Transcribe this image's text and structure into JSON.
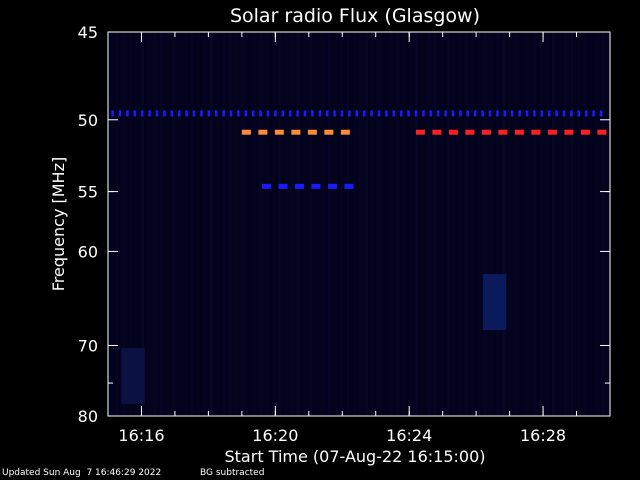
{
  "chart_data": {
    "type": "heatmap",
    "title": "Solar radio Flux (Glasgow)",
    "xlabel": "Start Time (07-Aug-22 16:15:00)",
    "ylabel": "Frequency [MHz]",
    "x_range": [
      "16:15:00",
      "16:30:00"
    ],
    "y_range": [
      45,
      80
    ],
    "x_ticks": [
      "16:16",
      "16:20",
      "16:24",
      "16:28"
    ],
    "x_tick_minutes": [
      1,
      5,
      9,
      13
    ],
    "y_ticks": [
      45,
      50,
      55,
      60,
      70,
      80
    ],
    "y_scale": "reciprocal",
    "y_minor_ticks": [
      55,
      75
    ],
    "features": [
      {
        "name": "interference",
        "freq_mhz": 49.6,
        "start_min": 0.1,
        "end_min": 14.8,
        "color": "#1a1aff",
        "style": "dotted"
      },
      {
        "name": "interference",
        "freq_mhz": 50.8,
        "start_min": 4.0,
        "end_min": 7.4,
        "color": "#ff8a3a",
        "style": "dashed"
      },
      {
        "name": "interference",
        "freq_mhz": 50.8,
        "start_min": 9.2,
        "end_min": 14.8,
        "color": "#ff2020",
        "style": "dashed"
      },
      {
        "name": "interference",
        "freq_mhz": 54.6,
        "start_min": 4.6,
        "end_min": 7.5,
        "color": "#1a1aff",
        "style": "dashed"
      },
      {
        "name": "enhancement",
        "freq_mhz": 65,
        "start_min": 11.2,
        "end_min": 11.9,
        "color": "#0c1f66",
        "style": "patch"
      },
      {
        "name": "enhancement",
        "freq_mhz": 74,
        "start_min": 0.4,
        "end_min": 1.1,
        "color": "#0d1448",
        "style": "patch"
      }
    ]
  },
  "footer": {
    "updated": "Updated Sun Aug  7 16:46:29 2022",
    "note": "BG subtracted"
  }
}
